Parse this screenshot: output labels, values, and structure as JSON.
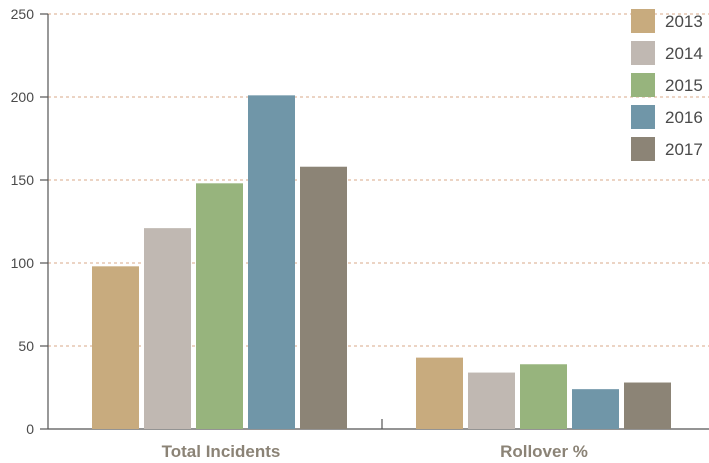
{
  "chart_data": {
    "type": "bar",
    "title": "",
    "xlabel": "",
    "ylabel": "",
    "categories": [
      "Total Incidents",
      "Rollover %"
    ],
    "ylim": [
      0,
      250
    ],
    "yticks": [
      0,
      50,
      100,
      150,
      200,
      250
    ],
    "grid": true,
    "legend_position": "top-right",
    "series": [
      {
        "name": "2013",
        "color": "#c8ab7e",
        "values": [
          98,
          43
        ]
      },
      {
        "name": "2014",
        "color": "#c0b8b2",
        "values": [
          121,
          34
        ]
      },
      {
        "name": "2015",
        "color": "#97b47d",
        "values": [
          148,
          39
        ]
      },
      {
        "name": "2016",
        "color": "#7096a8",
        "values": [
          201,
          24
        ]
      },
      {
        "name": "2017",
        "color": "#8c8476",
        "values": [
          158,
          28
        ]
      }
    ]
  },
  "colors": {
    "grid": "#d9a88a",
    "axis": "#555555",
    "category_label": "#8b8376"
  }
}
